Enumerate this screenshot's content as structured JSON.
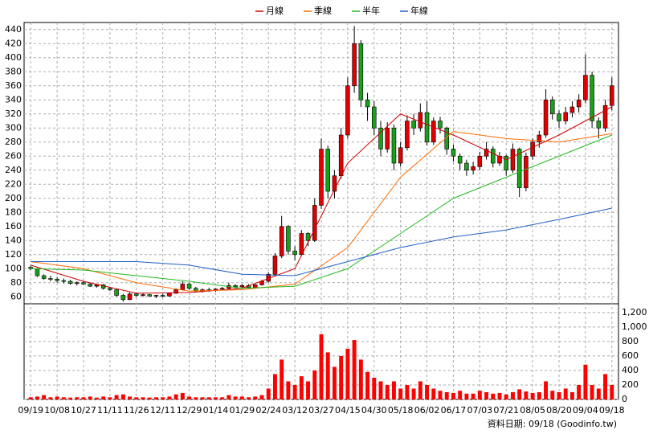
{
  "chart_data": {
    "type": "candlestick",
    "footer": "資料日期: 09/18 (Goodinfo.tw)",
    "up_color": "#e00000",
    "down_color": "#1aa01a",
    "volume_color": "#ff0000",
    "grid": true,
    "xlim": [
      -1,
      89
    ],
    "xticks": [
      {
        "value": 0,
        "label": "09/19"
      },
      {
        "value": 4,
        "label": "10/08"
      },
      {
        "value": 8,
        "label": "10/27"
      },
      {
        "value": 12,
        "label": "11/11"
      },
      {
        "value": 16,
        "label": "11/26"
      },
      {
        "value": 20,
        "label": "12/11"
      },
      {
        "value": 24,
        "label": "12/29"
      },
      {
        "value": 28,
        "label": "01/14"
      },
      {
        "value": 32,
        "label": "01/29"
      },
      {
        "value": 36,
        "label": "02/24"
      },
      {
        "value": 40,
        "label": "03/12"
      },
      {
        "value": 44,
        "label": "03/27"
      },
      {
        "value": 48,
        "label": "04/15"
      },
      {
        "value": 52,
        "label": "04/30"
      },
      {
        "value": 56,
        "label": "05/18"
      },
      {
        "value": 60,
        "label": "06/02"
      },
      {
        "value": 64,
        "label": "06/17"
      },
      {
        "value": 68,
        "label": "07/03"
      },
      {
        "value": 72,
        "label": "07/21"
      },
      {
        "value": 76,
        "label": "08/05"
      },
      {
        "value": 80,
        "label": "08/20"
      },
      {
        "value": 84,
        "label": "09/04"
      },
      {
        "value": 88,
        "label": "09/18"
      }
    ],
    "ylim": [
      50,
      450
    ],
    "yticks": [
      60,
      80,
      100,
      120,
      140,
      160,
      180,
      200,
      220,
      240,
      260,
      280,
      300,
      320,
      340,
      360,
      380,
      400,
      420,
      440
    ],
    "y2lim": [
      0,
      1320
    ],
    "y2ticks": [
      0,
      200,
      400,
      600,
      800,
      {
        "value": 1000,
        "label": "1,000"
      },
      {
        "value": 1200,
        "label": "1,200"
      }
    ],
    "ohlc": [
      [
        102,
        104,
        98,
        100
      ],
      [
        100,
        101,
        88,
        90
      ],
      [
        90,
        92,
        84,
        86
      ],
      [
        86,
        90,
        82,
        85
      ],
      [
        85,
        88,
        80,
        83
      ],
      [
        83,
        86,
        79,
        82
      ],
      [
        82,
        84,
        77,
        79
      ],
      [
        79,
        82,
        76,
        80
      ],
      [
        80,
        82,
        77,
        78
      ],
      [
        78,
        80,
        74,
        75
      ],
      [
        75,
        78,
        73,
        77
      ],
      [
        77,
        78,
        70,
        72
      ],
      [
        72,
        74,
        68,
        70
      ],
      [
        70,
        71,
        60,
        62
      ],
      [
        62,
        64,
        53,
        56
      ],
      [
        56,
        66,
        55,
        64
      ],
      [
        64,
        66,
        60,
        62
      ],
      [
        62,
        65,
        60,
        63
      ],
      [
        63,
        64,
        60,
        61
      ],
      [
        61,
        63,
        58,
        62
      ],
      [
        62,
        64,
        59,
        61
      ],
      [
        61,
        66,
        60,
        65
      ],
      [
        65,
        72,
        64,
        70
      ],
      [
        70,
        82,
        69,
        78
      ],
      [
        78,
        80,
        70,
        72
      ],
      [
        72,
        74,
        66,
        68
      ],
      [
        68,
        72,
        66,
        70
      ],
      [
        70,
        73,
        67,
        69
      ],
      [
        69,
        72,
        67,
        71
      ],
      [
        71,
        74,
        69,
        72
      ],
      [
        72,
        80,
        70,
        76
      ],
      [
        76,
        78,
        72,
        74
      ],
      [
        74,
        78,
        72,
        76
      ],
      [
        76,
        78,
        72,
        73
      ],
      [
        73,
        78,
        72,
        77
      ],
      [
        77,
        84,
        76,
        82
      ],
      [
        82,
        95,
        80,
        92
      ],
      [
        92,
        122,
        90,
        118
      ],
      [
        118,
        175,
        115,
        160
      ],
      [
        160,
        162,
        120,
        125
      ],
      [
        125,
        132,
        112,
        120
      ],
      [
        120,
        155,
        118,
        150
      ],
      [
        150,
        152,
        132,
        140
      ],
      [
        140,
        200,
        138,
        190
      ],
      [
        190,
        285,
        185,
        270
      ],
      [
        270,
        275,
        200,
        210
      ],
      [
        210,
        240,
        200,
        232
      ],
      [
        232,
        300,
        228,
        290
      ],
      [
        290,
        372,
        285,
        360
      ],
      [
        360,
        445,
        350,
        420
      ],
      [
        420,
        425,
        330,
        340
      ],
      [
        340,
        350,
        310,
        330
      ],
      [
        330,
        338,
        290,
        300
      ],
      [
        300,
        310,
        260,
        270
      ],
      [
        270,
        308,
        265,
        300
      ],
      [
        300,
        305,
        240,
        250
      ],
      [
        250,
        280,
        245,
        272
      ],
      [
        272,
        318,
        268,
        310
      ],
      [
        310,
        320,
        290,
        300
      ],
      [
        300,
        335,
        295,
        322
      ],
      [
        322,
        338,
        275,
        280
      ],
      [
        280,
        315,
        276,
        310
      ],
      [
        310,
        316,
        292,
        300
      ],
      [
        300,
        302,
        262,
        270
      ],
      [
        270,
        276,
        252,
        260
      ],
      [
        260,
        264,
        240,
        250
      ],
      [
        250,
        255,
        232,
        240
      ],
      [
        240,
        252,
        234,
        245
      ],
      [
        245,
        266,
        240,
        260
      ],
      [
        260,
        280,
        255,
        270
      ],
      [
        270,
        274,
        244,
        250
      ],
      [
        250,
        266,
        246,
        260
      ],
      [
        260,
        262,
        232,
        240
      ],
      [
        240,
        278,
        236,
        270
      ],
      [
        270,
        272,
        202,
        215
      ],
      [
        215,
        265,
        210,
        260
      ],
      [
        260,
        285,
        255,
        280
      ],
      [
        280,
        296,
        272,
        290
      ],
      [
        290,
        355,
        286,
        340
      ],
      [
        340,
        345,
        312,
        320
      ],
      [
        320,
        325,
        300,
        310
      ],
      [
        310,
        330,
        305,
        322
      ],
      [
        322,
        338,
        315,
        330
      ],
      [
        330,
        348,
        322,
        340
      ],
      [
        340,
        405,
        335,
        375
      ],
      [
        375,
        380,
        300,
        310
      ],
      [
        310,
        315,
        285,
        300
      ],
      [
        300,
        340,
        295,
        332
      ],
      [
        332,
        372,
        325,
        360
      ]
    ],
    "volume": [
      30,
      40,
      60,
      30,
      40,
      30,
      25,
      30,
      30,
      40,
      25,
      40,
      30,
      60,
      70,
      40,
      30,
      30,
      25,
      30,
      30,
      40,
      70,
      90,
      40,
      30,
      30,
      30,
      30,
      30,
      60,
      40,
      40,
      30,
      40,
      60,
      150,
      350,
      550,
      250,
      200,
      320,
      250,
      400,
      900,
      650,
      450,
      600,
      700,
      820,
      550,
      380,
      300,
      250,
      200,
      250,
      150,
      200,
      150,
      250,
      200,
      150,
      120,
      100,
      90,
      120,
      80,
      80,
      120,
      100,
      80,
      90,
      70,
      100,
      140,
      110,
      90,
      100,
      250,
      120,
      100,
      150,
      100,
      200,
      480,
      200,
      150,
      350,
      200
    ],
    "series": [
      {
        "name": "月線",
        "color": "#cc0000",
        "x": [
          0,
          8,
          16,
          24,
          32,
          40,
          48,
          56,
          64,
          72,
          80,
          88
        ],
        "values": [
          105,
          82,
          65,
          66,
          72,
          100,
          250,
          320,
          290,
          255,
          290,
          330
        ]
      },
      {
        "name": "季線",
        "color": "#ff6a00",
        "x": [
          0,
          8,
          16,
          24,
          32,
          40,
          48,
          56,
          64,
          72,
          80,
          88
        ],
        "values": [
          110,
          100,
          80,
          68,
          70,
          78,
          130,
          230,
          295,
          285,
          280,
          292
        ]
      },
      {
        "name": "半年",
        "color": "#22bb22",
        "x": [
          0,
          8,
          16,
          24,
          32,
          40,
          48,
          56,
          64,
          72,
          80,
          88
        ],
        "values": [
          100,
          98,
          90,
          82,
          72,
          75,
          100,
          150,
          200,
          230,
          260,
          290
        ]
      },
      {
        "name": "年線",
        "color": "#1e5fc8",
        "x": [
          0,
          8,
          16,
          24,
          32,
          40,
          48,
          56,
          64,
          72,
          80,
          88
        ],
        "values": [
          110,
          110,
          110,
          105,
          92,
          90,
          110,
          130,
          145,
          155,
          170,
          186
        ]
      }
    ]
  }
}
